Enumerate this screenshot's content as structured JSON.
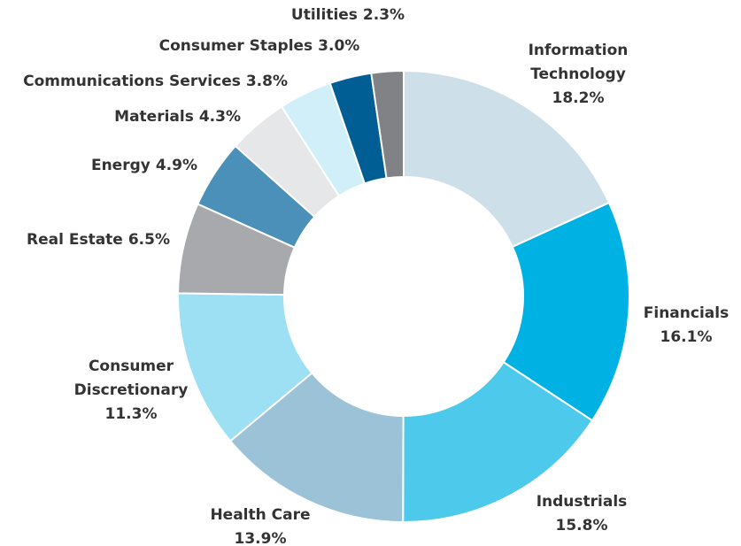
{
  "chart_data": {
    "type": "donut",
    "categories": [
      "Information Technology",
      "Financials",
      "Industrials",
      "Health Care",
      "Consumer Discretionary",
      "Real Estate",
      "Energy",
      "Materials",
      "Communications Services",
      "Consumer Staples",
      "Utilities"
    ],
    "values": [
      18.2,
      16.1,
      15.8,
      13.9,
      11.3,
      6.5,
      4.9,
      4.3,
      3.8,
      3.0,
      2.3
    ],
    "value_labels": [
      "18.2%",
      "16.1%",
      "15.8%",
      "13.9%",
      "11.3%",
      "6.5%",
      "4.9%",
      "4.3%",
      "3.8%",
      "3.0%",
      "2.3%"
    ],
    "colors": [
      "#cde0ea",
      "#00b2e3",
      "#4dc9ec",
      "#9bc2d7",
      "#9de0f4",
      "#a7a9ac",
      "#4a90b8",
      "#e6e7e8",
      "#d0eff9",
      "#005e95",
      "#808285"
    ]
  }
}
